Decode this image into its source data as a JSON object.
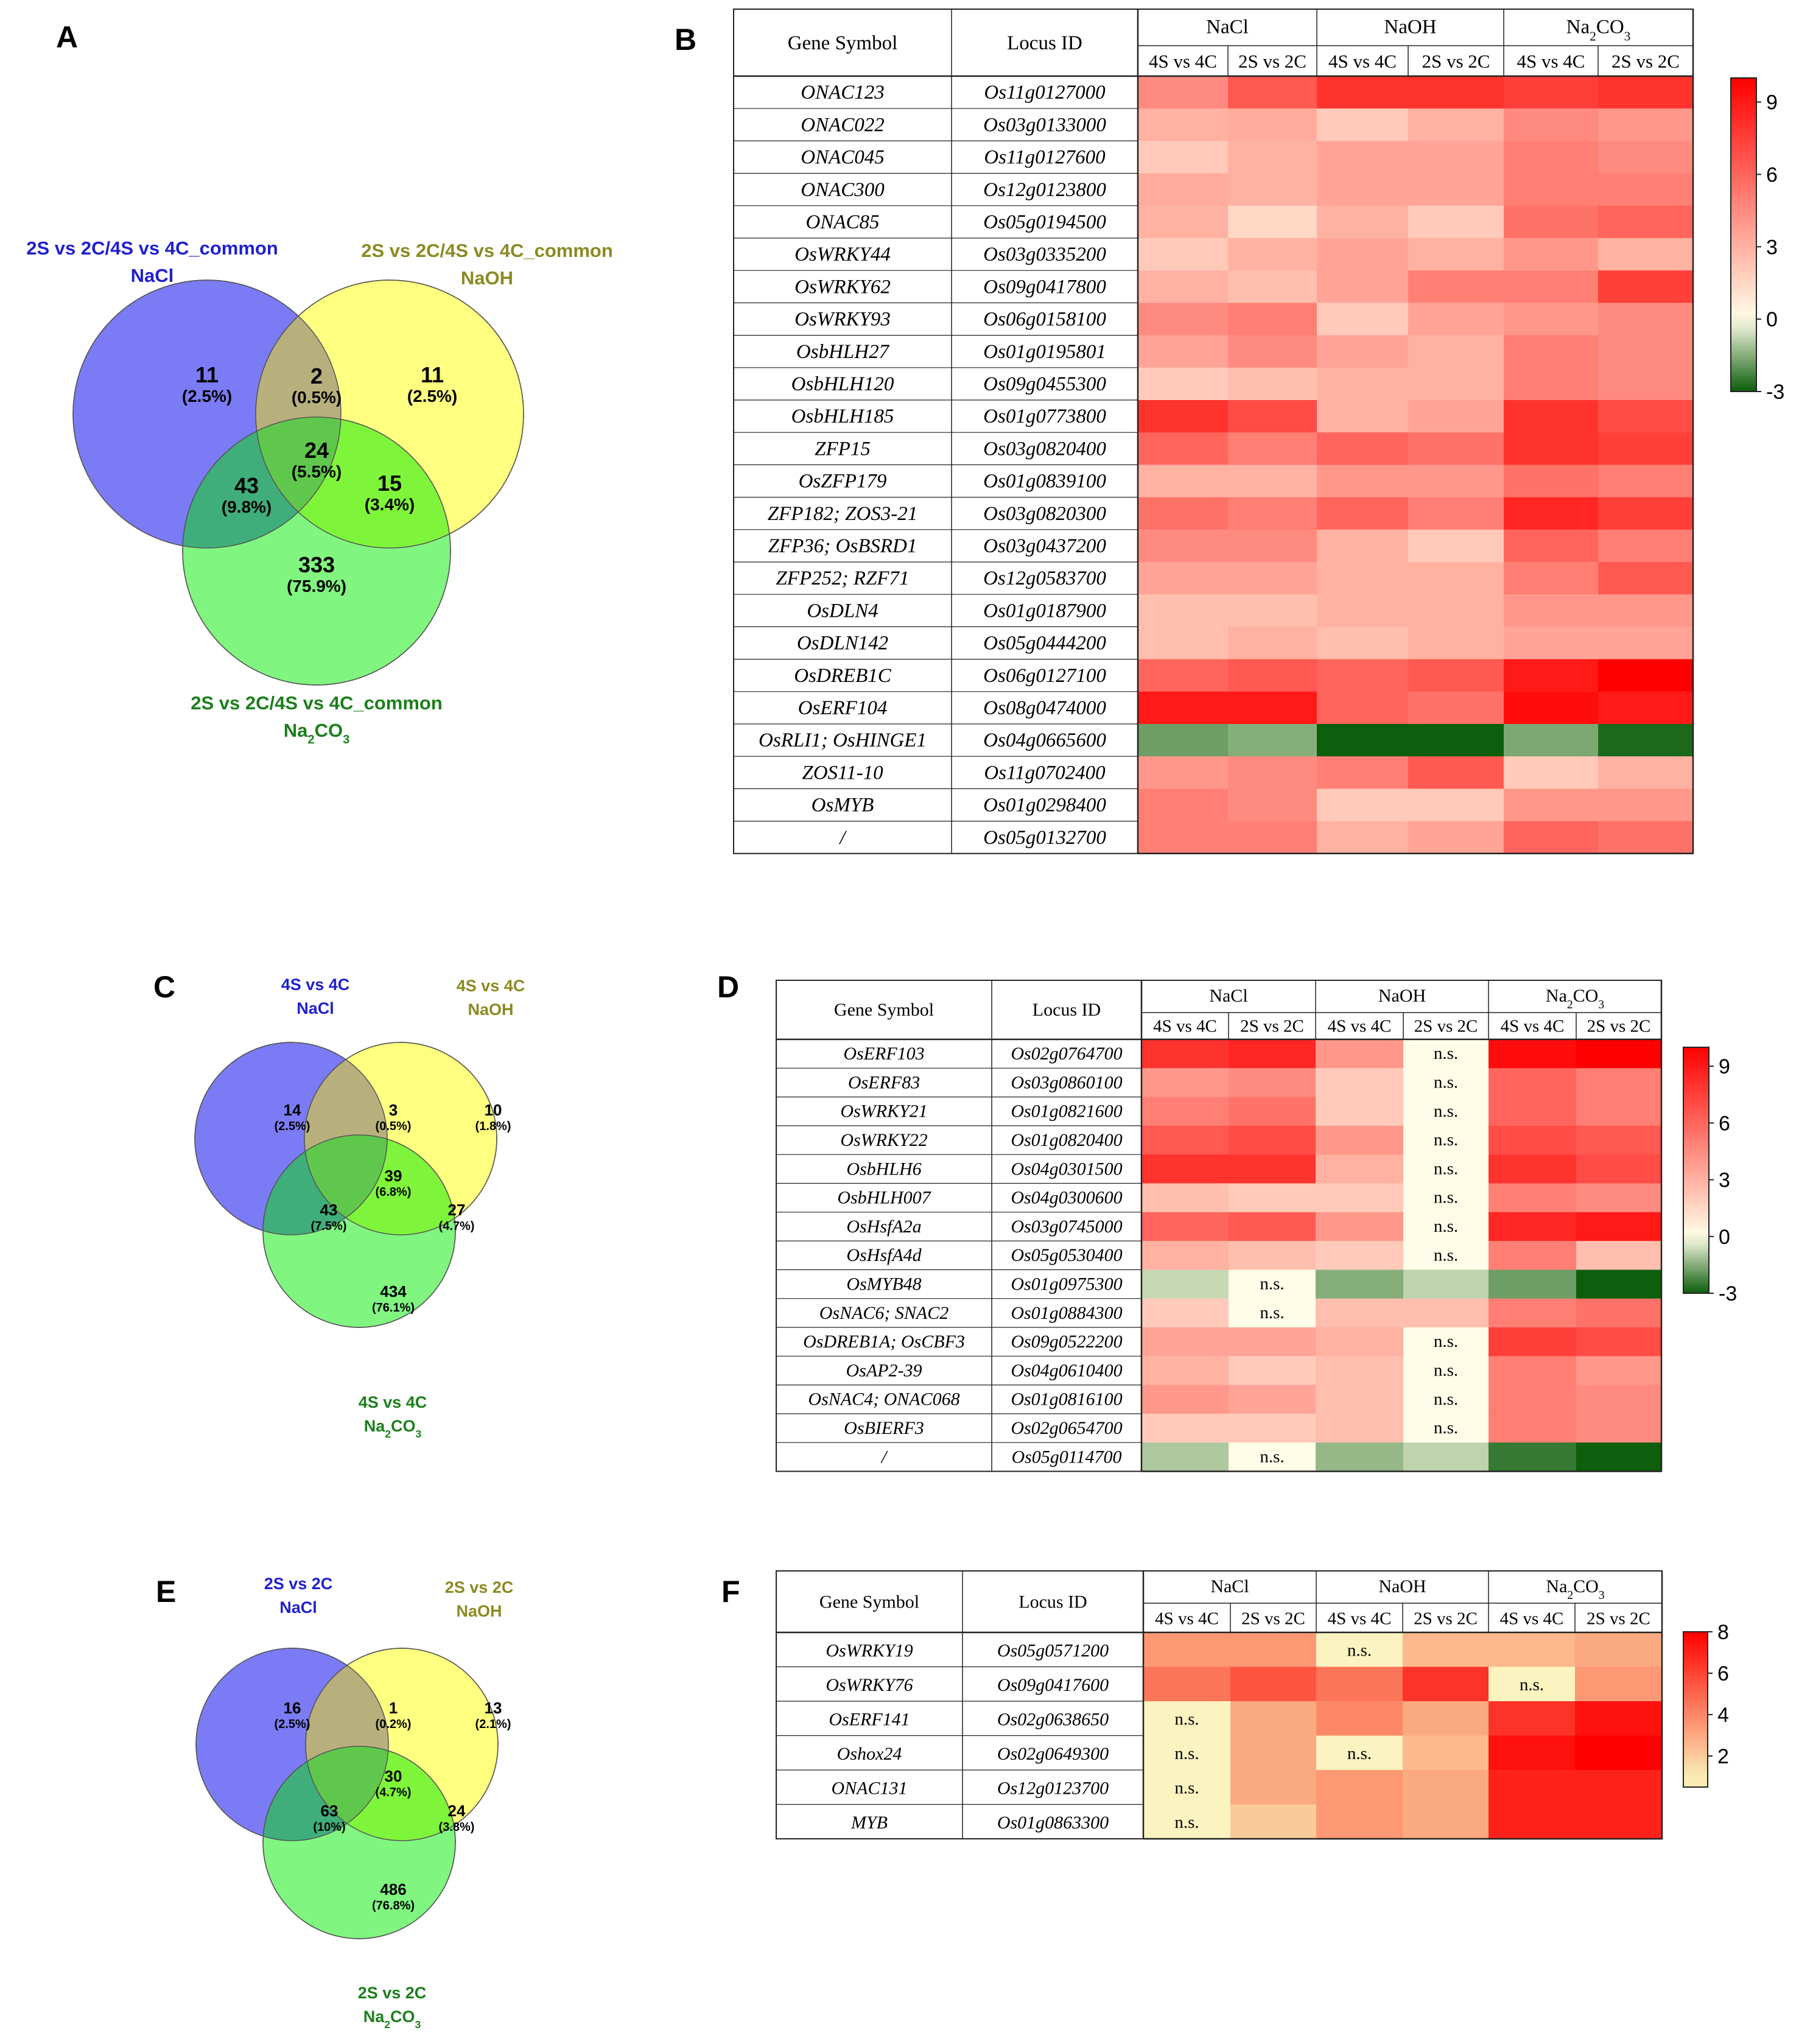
{
  "panels": {
    "A": "A",
    "B": "B",
    "C": "C",
    "D": "D",
    "E": "E",
    "F": "F"
  },
  "colors": {
    "nacl": "#1f1fd0",
    "naoh": "#8b8a22",
    "na2co3": "#1b7f1b",
    "heat_neg": "#0d5e0d",
    "heat_pos": "#ff0000",
    "heat_mid": "#fffde8"
  },
  "venns": [
    {
      "id": "A",
      "sets": [
        {
          "line1": "2S vs 2C/4S vs 4C_common",
          "line2": "NaCl",
          "sub": ""
        },
        {
          "line1": "2S vs 2C/4S vs 4C_common",
          "line2": "NaOH",
          "sub": ""
        },
        {
          "line1": "2S vs 2C/4S vs 4C_common",
          "line2": "Na",
          "sub": "2",
          "tail": "CO",
          "sub2": "3"
        }
      ],
      "regions": [
        {
          "n": "11",
          "p": "(2.5%)"
        },
        {
          "n": "2",
          "p": "(0.5%)"
        },
        {
          "n": "11",
          "p": "(2.5%)"
        },
        {
          "n": "24",
          "p": "(5.5%)"
        },
        {
          "n": "43",
          "p": "(9.8%)"
        },
        {
          "n": "15",
          "p": "(3.4%)"
        },
        {
          "n": "333",
          "p": "(75.9%)"
        }
      ]
    },
    {
      "id": "C",
      "sets": [
        {
          "line1": "4S vs 4C",
          "line2": "NaCl",
          "sub": ""
        },
        {
          "line1": "4S vs 4C",
          "line2": "NaOH",
          "sub": ""
        },
        {
          "line1": "4S vs 4C",
          "line2": "Na",
          "sub": "2",
          "tail": "CO",
          "sub2": "3"
        }
      ],
      "regions": [
        {
          "n": "14",
          "p": "(2.5%)"
        },
        {
          "n": "3",
          "p": "(0.5%)"
        },
        {
          "n": "10",
          "p": "(1.8%)"
        },
        {
          "n": "39",
          "p": "(6.8%)"
        },
        {
          "n": "43",
          "p": "(7.5%)"
        },
        {
          "n": "27",
          "p": "(4.7%)"
        },
        {
          "n": "434",
          "p": "(76.1%)"
        }
      ]
    },
    {
      "id": "E",
      "sets": [
        {
          "line1": "2S vs 2C",
          "line2": "NaCl",
          "sub": ""
        },
        {
          "line1": "2S vs 2C",
          "line2": "NaOH",
          "sub": ""
        },
        {
          "line1": "2S vs 2C",
          "line2": "Na",
          "sub": "2",
          "tail": "CO",
          "sub2": "3"
        }
      ],
      "regions": [
        {
          "n": "16",
          "p": "(2.5%)"
        },
        {
          "n": "1",
          "p": "(0.2%)"
        },
        {
          "n": "13",
          "p": "(2.1%)"
        },
        {
          "n": "30",
          "p": "(4.7%)"
        },
        {
          "n": "63",
          "p": "(10%)"
        },
        {
          "n": "24",
          "p": "(3.8%)"
        },
        {
          "n": "486",
          "p": "(76.8%)"
        }
      ]
    }
  ],
  "chart_data": [
    {
      "id": "B",
      "type": "heatmap",
      "headers": {
        "gene": "Gene Symbol",
        "locus": "Locus ID",
        "groups": [
          "NaCl",
          "NaOH",
          "Na2CO3"
        ],
        "cols": [
          "4S vs 4C",
          "2S vs 2C",
          "4S vs 4C",
          "2S vs 2C",
          "4S vs 4C",
          "2S vs 2C"
        ]
      },
      "scale": {
        "min": -3,
        "max": 10,
        "ticks": [
          "9",
          "6",
          "3",
          "0",
          "-3"
        ]
      },
      "rows": [
        {
          "gene": "ONAC123",
          "locus": "Os11g0127000",
          "v": [
            4.5,
            6.5,
            8,
            8,
            7.5,
            8
          ]
        },
        {
          "gene": "ONAC022",
          "locus": "Os03g0133000",
          "v": [
            3,
            3.2,
            2,
            3,
            4.5,
            4
          ]
        },
        {
          "gene": "ONAC045",
          "locus": "Os11g0127600",
          "v": [
            2,
            3,
            3.5,
            3.5,
            5,
            4.5
          ]
        },
        {
          "gene": "ONAC300",
          "locus": "Os12g0123800",
          "v": [
            3.2,
            3,
            3.5,
            3.5,
            5,
            5
          ]
        },
        {
          "gene": "ONAC85",
          "locus": "Os05g0194500",
          "v": [
            3,
            1.5,
            3,
            2,
            5.5,
            6
          ]
        },
        {
          "gene": "OsWRKY44",
          "locus": "Os03g0335200",
          "v": [
            2,
            3,
            3.5,
            3,
            4,
            3
          ]
        },
        {
          "gene": "OsWRKY62",
          "locus": "Os09g0417800",
          "v": [
            3,
            2.5,
            3.5,
            5,
            5,
            7.5
          ]
        },
        {
          "gene": "OsWRKY93",
          "locus": "Os06g0158100",
          "v": [
            4.5,
            5,
            2,
            3.5,
            4,
            4.5
          ]
        },
        {
          "gene": "OsbHLH27",
          "locus": "Os01g0195801",
          "v": [
            3.5,
            4.5,
            3.5,
            3,
            5,
            4.5
          ]
        },
        {
          "gene": "OsbHLH120",
          "locus": "Os09g0455300",
          "v": [
            2,
            2.5,
            3,
            3,
            5,
            4.5
          ]
        },
        {
          "gene": "OsbHLH185",
          "locus": "Os01g0773800",
          "v": [
            8,
            7,
            3,
            3.5,
            8,
            7
          ]
        },
        {
          "gene": "ZFP15",
          "locus": "Os03g0820400",
          "v": [
            6,
            5,
            6,
            5.5,
            8,
            7.5
          ]
        },
        {
          "gene": "OsZFP179",
          "locus": "Os01g0839100",
          "v": [
            3,
            3,
            4,
            4,
            5.5,
            5
          ]
        },
        {
          "gene": "ZFP182; ZOS3-21",
          "locus": "Os03g0820300",
          "v": [
            5.5,
            5,
            6,
            5,
            8.5,
            7.5
          ]
        },
        {
          "gene": "ZFP36; OsBSRD1",
          "locus": "Os03g0437200",
          "v": [
            4.5,
            4.5,
            3,
            2,
            6,
            5
          ]
        },
        {
          "gene": "ZFP252; RZF71",
          "locus": "Os12g0583700",
          "v": [
            3.5,
            3.5,
            3,
            3,
            5,
            6.5
          ]
        },
        {
          "gene": "OsDLN4",
          "locus": "Os01g0187900",
          "v": [
            2.5,
            2.5,
            3,
            3,
            4,
            4
          ]
        },
        {
          "gene": "OsDLN142",
          "locus": "Os05g0444200",
          "v": [
            2.5,
            3,
            2.5,
            3,
            3.5,
            3.5
          ]
        },
        {
          "gene": "OsDREB1C",
          "locus": "Os06g0127100",
          "v": [
            6,
            6.5,
            6,
            6.5,
            9,
            10
          ]
        },
        {
          "gene": "OsERF104",
          "locus": "Os08g0474000",
          "v": [
            9,
            9,
            6,
            5.5,
            9.5,
            9
          ]
        },
        {
          "gene": "OsRLI1; OsHINGE1",
          "locus": "Os04g0665600",
          "v": [
            -1.8,
            -1.5,
            -3,
            -3,
            -1.6,
            -2.8
          ]
        },
        {
          "gene": "ZOS11-10",
          "locus": "Os11g0702400",
          "v": [
            4,
            4.5,
            5,
            6.5,
            2,
            3
          ]
        },
        {
          "gene": "OsMYB",
          "locus": "Os01g0298400",
          "v": [
            5,
            4.5,
            2,
            2,
            4,
            4
          ]
        },
        {
          "gene": "/",
          "locus": "Os05g0132700",
          "v": [
            5,
            5,
            3,
            3.5,
            6,
            5.5
          ]
        }
      ]
    },
    {
      "id": "D",
      "type": "heatmap",
      "headers": {
        "gene": "Gene Symbol",
        "locus": "Locus ID",
        "groups": [
          "NaCl",
          "NaOH",
          "Na2CO3"
        ],
        "cols": [
          "4S vs 4C",
          "2S vs 2C",
          "4S vs 4C",
          "2S vs 2C",
          "4S vs 4C",
          "2S vs 2C"
        ]
      },
      "scale": {
        "min": -3,
        "max": 10,
        "ticks": [
          "9",
          "6",
          "3",
          "0",
          "-3"
        ]
      },
      "ns_label": "n.s.",
      "rows": [
        {
          "gene": "OsERF103",
          "locus": "Os02g0764700",
          "v": [
            8,
            8.5,
            4,
            null,
            9.5,
            10
          ]
        },
        {
          "gene": "OsERF83",
          "locus": "Os03g0860100",
          "v": [
            4,
            4.5,
            2,
            null,
            6,
            5
          ]
        },
        {
          "gene": "OsWRKY21",
          "locus": "Os01g0821600",
          "v": [
            5,
            5.5,
            2,
            null,
            6,
            5
          ]
        },
        {
          "gene": "OsWRKY22",
          "locus": "Os01g0820400",
          "v": [
            6.5,
            7,
            4,
            null,
            7,
            6.5
          ]
        },
        {
          "gene": "OsbHLH6",
          "locus": "Os04g0301500",
          "v": [
            8,
            8,
            3,
            null,
            8,
            7
          ]
        },
        {
          "gene": "OsbHLH007",
          "locus": "Os04g0300600",
          "v": [
            2.5,
            2,
            2,
            null,
            5,
            4.5
          ]
        },
        {
          "gene": "OsHsfA2a",
          "locus": "Os03g0745000",
          "v": [
            6,
            6.5,
            4,
            null,
            8.5,
            9
          ]
        },
        {
          "gene": "OsHsfA4d",
          "locus": "Os05g0530400",
          "v": [
            3,
            2.5,
            2,
            null,
            5,
            2.5
          ]
        },
        {
          "gene": "OsMYB48",
          "locus": "Os01g0975300",
          "v": [
            -0.7,
            null,
            -1.5,
            -0.8,
            -1.8,
            -3
          ]
        },
        {
          "gene": "OsNAC6; SNAC2",
          "locus": "Os01g0884300",
          "v": [
            2,
            null,
            2.5,
            2.5,
            5,
            5.5
          ]
        },
        {
          "gene": "OsDREB1A; OsCBF3",
          "locus": "Os09g0522200",
          "v": [
            3.5,
            3.5,
            3,
            null,
            7.5,
            7
          ]
        },
        {
          "gene": "OsAP2-39",
          "locus": "Os04g0610400",
          "v": [
            3,
            2,
            2.5,
            null,
            5,
            4
          ]
        },
        {
          "gene": "OsNAC4; ONAC068",
          "locus": "Os01g0816100",
          "v": [
            4,
            3.5,
            2.5,
            null,
            5,
            4.5
          ]
        },
        {
          "gene": "OsBIERF3",
          "locus": "Os02g0654700",
          "v": [
            2,
            2,
            2.5,
            null,
            5,
            4.5
          ]
        },
        {
          "gene": "/",
          "locus": "Os05g0114700",
          "v": [
            -1,
            null,
            -1.3,
            -0.8,
            -2.5,
            -3
          ]
        }
      ]
    },
    {
      "id": "F",
      "type": "heatmap",
      "headers": {
        "gene": "Gene Symbol",
        "locus": "Locus ID",
        "groups": [
          "NaCl",
          "NaOH",
          "Na2CO3"
        ],
        "cols": [
          "4S vs 4C",
          "2S vs 2C",
          "4S vs 4C",
          "2S vs 2C",
          "4S vs 4C",
          "2S vs 2C"
        ]
      },
      "scale": {
        "min": 0.5,
        "max": 8,
        "ticks": [
          "8",
          "6",
          "4",
          "2"
        ]
      },
      "ns_label": "n.s.",
      "rows": [
        {
          "gene": "OsWRKY19",
          "locus": "Os05g0571200",
          "v": [
            3.5,
            3.5,
            null,
            2.5,
            2.5,
            3
          ]
        },
        {
          "gene": "OsWRKY76",
          "locus": "Os09g0417600",
          "v": [
            4.5,
            5.5,
            4.5,
            6.5,
            null,
            3.5
          ]
        },
        {
          "gene": "OsERF141",
          "locus": "Os02g0638650",
          "v": [
            null,
            3,
            4,
            3,
            6.5,
            7.5
          ]
        },
        {
          "gene": "Oshox24",
          "locus": "Os02g0649300",
          "v": [
            null,
            3,
            null,
            2.5,
            7.5,
            8
          ]
        },
        {
          "gene": "ONAC131",
          "locus": "Os12g0123700",
          "v": [
            null,
            3,
            3.5,
            3,
            7,
            7
          ]
        },
        {
          "gene": "MYB",
          "locus": "Os01g0863300",
          "v": [
            null,
            2,
            3.5,
            3,
            7,
            7
          ]
        }
      ]
    }
  ]
}
